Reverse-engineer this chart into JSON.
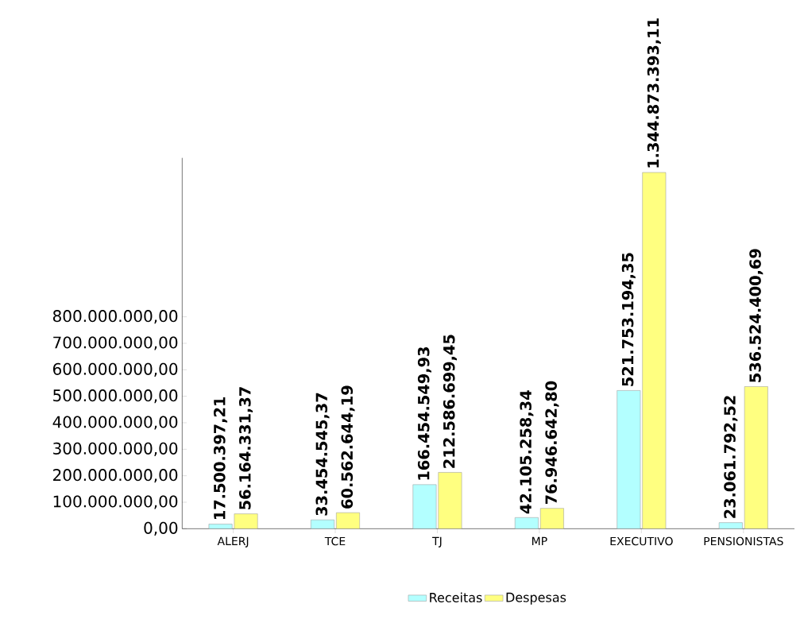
{
  "chart_data": {
    "type": "bar",
    "categories": [
      "ALERJ",
      "TCE",
      "TJ",
      "MP",
      "EXECUTIVO",
      "PENSIONISTAS"
    ],
    "series": [
      {
        "name": "Receitas",
        "color": "#b3ffff",
        "values": [
          17500397.21,
          33454545.37,
          166454549.93,
          42105258.34,
          521753194.35,
          23061792.52
        ],
        "value_labels": [
          "17.500.397,21",
          "33.454.545,37",
          "166.454.549,93",
          "42.105.258,34",
          "521.753.194,35",
          "23.061.792,52"
        ]
      },
      {
        "name": "Despesas",
        "color": "#ffff80",
        "values": [
          56164331.37,
          60562644.19,
          212586699.45,
          76946642.8,
          1344873393.11,
          536524400.69
        ],
        "value_labels": [
          "56.164.331,37",
          "60.562.644,19",
          "212.586.699,45",
          "76.946.642,80",
          "1.344.873.393,11",
          "536.524.400,69"
        ]
      }
    ],
    "ylim": [
      0,
      1400000000
    ],
    "yticks": [
      {
        "value": 0,
        "label": "0,00"
      },
      {
        "value": 100000000,
        "label": "100.000.000,00"
      },
      {
        "value": 200000000,
        "label": "200.000.000,00"
      },
      {
        "value": 300000000,
        "label": "300.000.000,00"
      },
      {
        "value": 400000000,
        "label": "400.000.000,00"
      },
      {
        "value": 500000000,
        "label": "500.000.000,00"
      },
      {
        "value": 600000000,
        "label": "600.000.000,00"
      },
      {
        "value": 700000000,
        "label": "700.000.000,00"
      },
      {
        "value": 800000000,
        "label": "800.000.000,00"
      }
    ],
    "legend": "bottom",
    "grid": false
  }
}
